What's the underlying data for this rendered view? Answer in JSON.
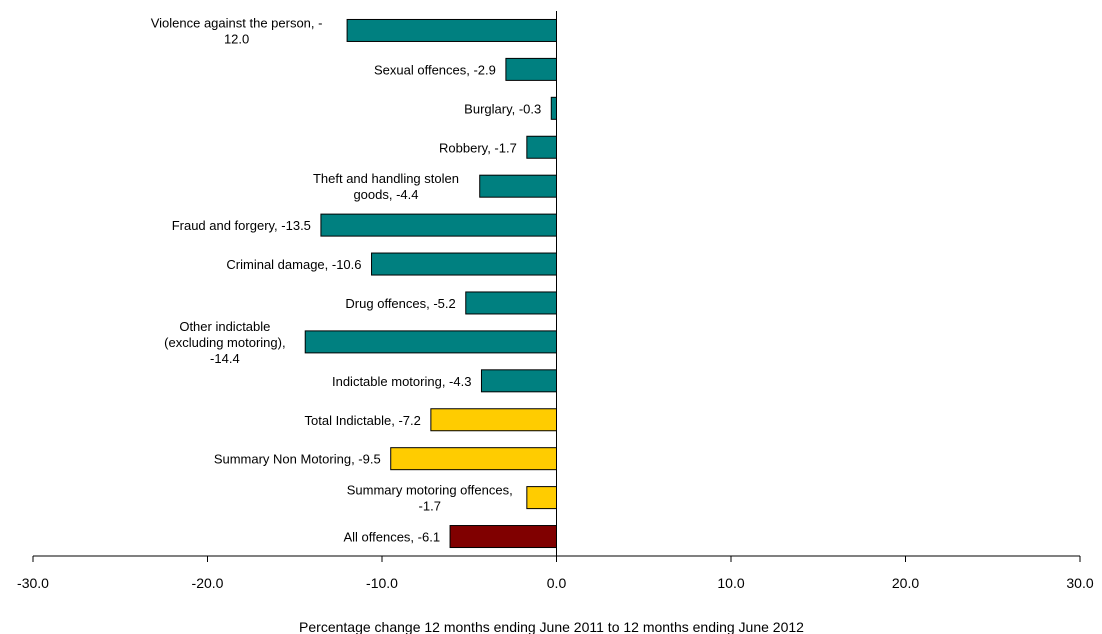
{
  "chart_data": {
    "type": "bar",
    "orientation": "horizontal",
    "xlabel": "Percentage change 12 months ending June 2011 to 12 months ending June 2012",
    "xlim": [
      -30,
      30
    ],
    "xticks": [
      "-30.0",
      "-20.0",
      "-10.0",
      "0.0",
      "10.0",
      "20.0",
      "30.0"
    ],
    "grid": false,
    "categories": [
      "Violence against the person",
      "Sexual offences",
      "Burglary",
      "Robbery",
      "Theft and handling stolen goods",
      "Fraud and forgery",
      "Criminal damage",
      "Drug offences",
      "Other indictable (excluding motoring)",
      "Indictable motoring",
      "Total Indictable",
      "Summary Non Motoring",
      "Summary motoring offences",
      "All offences"
    ],
    "values": [
      -12.0,
      -2.9,
      -0.3,
      -1.7,
      -4.4,
      -13.5,
      -10.6,
      -5.2,
      -14.4,
      -4.3,
      -7.2,
      -9.5,
      -1.7,
      -6.1
    ],
    "data_labels": [
      [
        "Violence against the person, -",
        "12.0"
      ],
      [
        "Sexual offences, -2.9"
      ],
      [
        "Burglary, -0.3"
      ],
      [
        "Robbery, -1.7"
      ],
      [
        "Theft and handling stolen",
        "goods, -4.4"
      ],
      [
        "Fraud and forgery, -13.5"
      ],
      [
        "Criminal damage, -10.6"
      ],
      [
        "Drug offences, -5.2"
      ],
      [
        "Other indictable",
        "(excluding motoring),",
        "-14.4"
      ],
      [
        "Indictable motoring, -4.3"
      ],
      [
        "Total Indictable, -7.2"
      ],
      [
        "Summary Non Motoring, -9.5"
      ],
      [
        "Summary motoring offences,",
        "-1.7"
      ],
      [
        "All offences, -6.1"
      ]
    ],
    "bar_colors": [
      "#008080",
      "#008080",
      "#008080",
      "#008080",
      "#008080",
      "#008080",
      "#008080",
      "#008080",
      "#008080",
      "#008080",
      "#FFCC00",
      "#FFCC00",
      "#FFCC00",
      "#800000"
    ]
  }
}
